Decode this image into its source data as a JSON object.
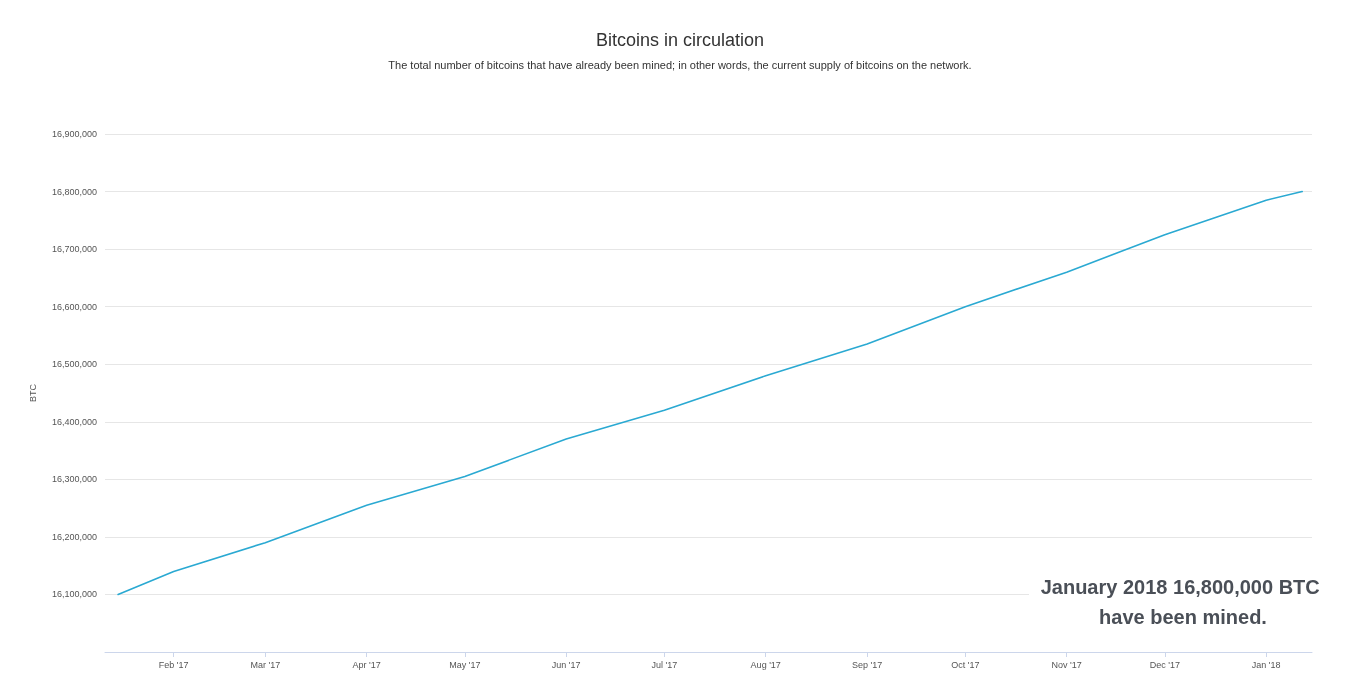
{
  "chart_data": {
    "type": "line",
    "title": "Bitcoins in circulation",
    "subtitle": "The total number of bitcoins that have already been mined; in other words, the current supply of bitcoins on the network.",
    "ylabel": "BTC",
    "x": [
      "2017-01-15",
      "2017-02-01",
      "2017-03-01",
      "2017-04-01",
      "2017-05-01",
      "2017-06-01",
      "2017-07-01",
      "2017-08-01",
      "2017-09-01",
      "2017-10-01",
      "2017-11-01",
      "2017-12-01",
      "2018-01-01",
      "2018-01-12"
    ],
    "series": [
      {
        "color": "#2aa9d2",
        "values": [
          16100000,
          16140000,
          16190000,
          16255000,
          16305000,
          16370000,
          16420000,
          16480000,
          16535000,
          16600000,
          16660000,
          16725000,
          16785000,
          16800000
        ]
      }
    ],
    "xlim": [
      "2017-01-11",
      "2018-01-15"
    ],
    "xticks": [
      {
        "value": "2017-02-01",
        "label": "Feb '17"
      },
      {
        "value": "2017-03-01",
        "label": "Mar '17"
      },
      {
        "value": "2017-04-01",
        "label": "Apr '17"
      },
      {
        "value": "2017-05-01",
        "label": "May '17"
      },
      {
        "value": "2017-06-01",
        "label": "Jun '17"
      },
      {
        "value": "2017-07-01",
        "label": "Jul '17"
      },
      {
        "value": "2017-08-01",
        "label": "Aug '17"
      },
      {
        "value": "2017-09-01",
        "label": "Sep '17"
      },
      {
        "value": "2017-10-01",
        "label": "Oct '17"
      },
      {
        "value": "2017-11-01",
        "label": "Nov '17"
      },
      {
        "value": "2017-12-01",
        "label": "Dec '17"
      },
      {
        "value": "2018-01-01",
        "label": "Jan '18"
      }
    ],
    "ylim": [
      16000000,
      16900000
    ],
    "yticks": [
      {
        "value": 16000000,
        "label": null
      },
      {
        "value": 16100000,
        "label": "16,100,000"
      },
      {
        "value": 16200000,
        "label": "16,200,000"
      },
      {
        "value": 16300000,
        "label": "16,300,000"
      },
      {
        "value": 16400000,
        "label": "16,400,000"
      },
      {
        "value": 16500000,
        "label": "16,500,000"
      },
      {
        "value": 16600000,
        "label": "16,600,000"
      },
      {
        "value": 16700000,
        "label": "16,700,000"
      },
      {
        "value": 16800000,
        "label": "16,800,000"
      },
      {
        "value": 16900000,
        "label": "16,900,000"
      }
    ],
    "grid": "y",
    "marker": "none",
    "line_style": "solid",
    "annotations": [
      "January 2018 16,800,000 BTC have been mined."
    ]
  }
}
